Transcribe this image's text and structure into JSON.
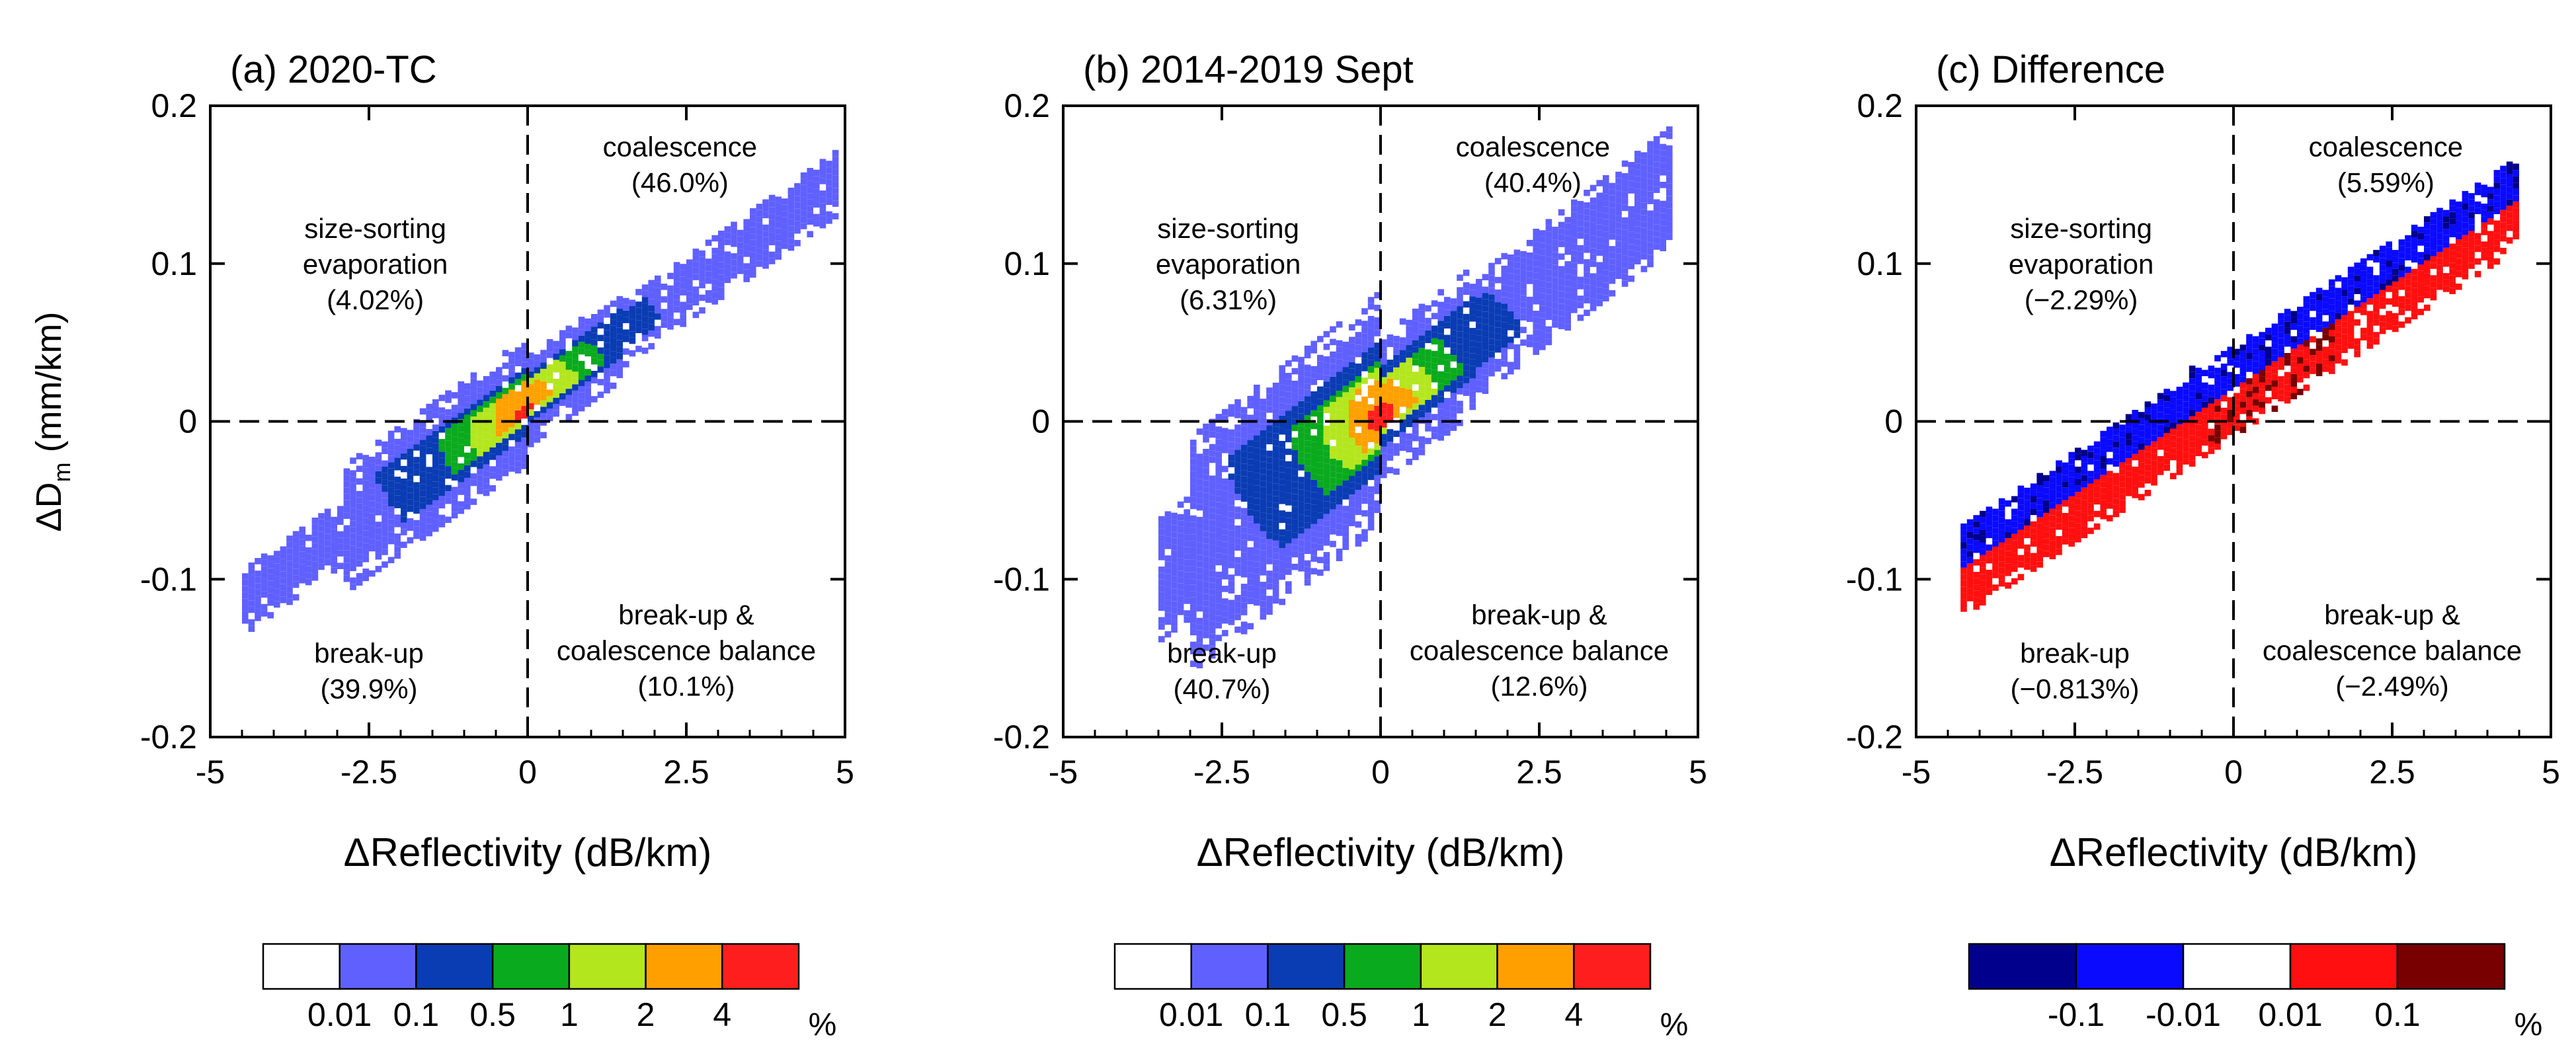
{
  "figure": {
    "ylabel_prefix": "ΔD",
    "ylabel_sub": "m",
    "ylabel_suffix": " (mm/km)",
    "colorbar_unit": "%"
  },
  "chart_data": [
    {
      "type": "heatmap",
      "title": "(a) 2020-TC",
      "xlabel": "ΔReflectivity (dB/km)",
      "ylabel": "ΔDm (mm/km)",
      "xlim": [
        -5,
        5
      ],
      "ylim": [
        -0.2,
        0.2
      ],
      "xticks": [
        -5,
        -2.5,
        0,
        2.5,
        5
      ],
      "xtick_labels": [
        "-5",
        "-2.5",
        "0",
        "2.5",
        "5"
      ],
      "yticks": [
        -0.2,
        -0.1,
        0,
        0.1,
        0.2
      ],
      "ytick_labels": [
        "-0.2",
        "-0.1",
        "0",
        "0.1",
        "0.2"
      ],
      "quadrants": [
        {
          "lines": [
            "size-sorting",
            "evaporation",
            "(4.02%)"
          ],
          "x": -2.4,
          "y": 0.1
        },
        {
          "lines": [
            "coalescence",
            "(46.0%)"
          ],
          "x": 2.4,
          "y": 0.163
        },
        {
          "lines": [
            "break-up",
            "(39.9%)"
          ],
          "x": -2.5,
          "y": -0.158
        },
        {
          "lines": [
            "break-up &",
            "coalescence balance",
            "(10.1%)"
          ],
          "x": 2.5,
          "y": -0.145
        }
      ],
      "colorbar": {
        "boundaries": [
          "0.01",
          "0.1",
          "0.5",
          "1",
          "2",
          "4"
        ],
        "colors": [
          "#ffffff",
          "#6060ff",
          "#0a3cb4",
          "#0aaa1e",
          "#b4e61e",
          "#ffa000",
          "#ff1e1e"
        ]
      },
      "distribution": {
        "core_line": {
          "x0": -4.0,
          "y0": -0.1,
          "x1": 4.8,
          "y1": 0.15
        },
        "region": {
          "x_range": [
            -4.5,
            4.8
          ],
          "half_width": 0.022
        },
        "hot_center": {
          "x": 0.0,
          "y": 0.0
        }
      }
    },
    {
      "type": "heatmap",
      "title": "(b)  2014-2019 Sept",
      "xlabel": "ΔReflectivity (dB/km)",
      "ylabel": "",
      "xlim": [
        -5,
        5
      ],
      "ylim": [
        -0.2,
        0.2
      ],
      "xticks": [
        -5,
        -2.5,
        0,
        2.5,
        5
      ],
      "xtick_labels": [
        "-5",
        "-2.5",
        "0",
        "2.5",
        "5"
      ],
      "yticks": [
        -0.2,
        -0.1,
        0,
        0.1,
        0.2
      ],
      "ytick_labels": [
        "-0.2",
        "-0.1",
        "0",
        "0.1",
        "0.2"
      ],
      "quadrants": [
        {
          "lines": [
            "size-sorting",
            "evaporation",
            "(6.31%)"
          ],
          "x": -2.4,
          "y": 0.1
        },
        {
          "lines": [
            "coalescence",
            "(40.4%)"
          ],
          "x": 2.4,
          "y": 0.163
        },
        {
          "lines": [
            "break-up",
            "(40.7%)"
          ],
          "x": -2.5,
          "y": -0.158
        },
        {
          "lines": [
            "break-up &",
            "coalescence balance",
            "(12.6%)"
          ],
          "x": 2.5,
          "y": -0.145
        }
      ],
      "colorbar": {
        "boundaries": [
          "0.01",
          "0.1",
          "0.5",
          "1",
          "2",
          "4"
        ],
        "colors": [
          "#ffffff",
          "#6060ff",
          "#0a3cb4",
          "#0aaa1e",
          "#b4e61e",
          "#ffa000",
          "#ff1e1e"
        ]
      },
      "distribution": {
        "core_line": {
          "x0": -3.5,
          "y0": -0.1,
          "x1": 4.6,
          "y1": 0.15
        },
        "region": {
          "x_range": [
            -3.5,
            4.6
          ],
          "half_width": 0.04
        },
        "hot_center": {
          "x": 0.0,
          "y": 0.0
        }
      }
    },
    {
      "type": "heatmap",
      "title": "(c) Difference",
      "xlabel": "ΔReflectivity (dB/km)",
      "ylabel": "",
      "xlim": [
        -5,
        5
      ],
      "ylim": [
        -0.2,
        0.2
      ],
      "xticks": [
        -5,
        -2.5,
        0,
        2.5,
        5
      ],
      "xtick_labels": [
        "-5",
        "-2.5",
        "0",
        "2.5",
        "5"
      ],
      "yticks": [
        -0.2,
        -0.1,
        0,
        0.1,
        0.2
      ],
      "ytick_labels": [
        "-0.2",
        "-0.1",
        "0",
        "0.1",
        "0.2"
      ],
      "quadrants": [
        {
          "lines": [
            "size-sorting",
            "evaporation",
            "(−2.29%)"
          ],
          "x": -2.4,
          "y": 0.1
        },
        {
          "lines": [
            "coalescence",
            "(5.59%)"
          ],
          "x": 2.4,
          "y": 0.163
        },
        {
          "lines": [
            "break-up",
            "(−0.813%)"
          ],
          "x": -2.5,
          "y": -0.158
        },
        {
          "lines": [
            "break-up &",
            "coalescence balance",
            "(−2.49%)"
          ],
          "x": 2.5,
          "y": -0.145
        }
      ],
      "colorbar": {
        "boundaries": [
          "-0.1",
          "-0.01",
          "0.01",
          "0.1"
        ],
        "colors": [
          "#00008c",
          "#0a0aff",
          "#ffffff",
          "#ff0f0f",
          "#780000"
        ]
      },
      "distribution": {
        "core_line": {
          "x0": -3.0,
          "y0": -0.06,
          "x1": 4.5,
          "y1": 0.14
        },
        "region": {
          "x_range": [
            -4.3,
            4.5
          ],
          "half_width": 0.03
        },
        "hot_center": {
          "x": 0.5,
          "y": 0.01
        }
      }
    }
  ]
}
